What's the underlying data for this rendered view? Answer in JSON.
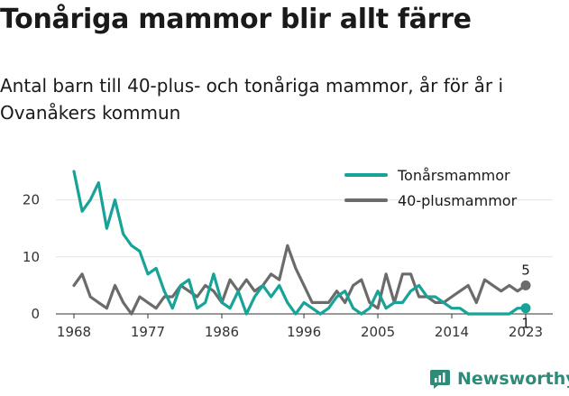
{
  "header": {
    "title": "Tonåriga mammor blir allt färre",
    "subtitle": "Antal barn till 40-plus- och tonåriga mammor, år för år i Ovanåkers kommun"
  },
  "brand": {
    "name": "Newsworthy",
    "icon": "newsworthy-logo-icon",
    "color": "#2e8b79"
  },
  "chart_data": {
    "type": "line",
    "title": "Tonåriga mammor blir allt färre",
    "subtitle": "Antal barn till 40-plus- och tonåriga mammor, år för år i Ovanåkers kommun",
    "xlabel": "",
    "ylabel": "",
    "xlim": [
      1968,
      2023
    ],
    "ylim": [
      0,
      25
    ],
    "x_ticks": [
      1968,
      1977,
      1986,
      1996,
      2005,
      2014,
      2023
    ],
    "y_ticks": [
      0,
      10,
      20
    ],
    "grid": "horizontal",
    "legend_position": "top-right",
    "x": [
      1968,
      1969,
      1970,
      1971,
      1972,
      1973,
      1974,
      1975,
      1976,
      1977,
      1978,
      1979,
      1980,
      1981,
      1982,
      1983,
      1984,
      1985,
      1986,
      1987,
      1988,
      1989,
      1990,
      1991,
      1992,
      1993,
      1994,
      1995,
      1996,
      1997,
      1998,
      1999,
      2000,
      2001,
      2002,
      2003,
      2004,
      2005,
      2006,
      2007,
      2008,
      2009,
      2010,
      2011,
      2012,
      2013,
      2014,
      2015,
      2016,
      2017,
      2018,
      2019,
      2020,
      2021,
      2022,
      2023
    ],
    "series": [
      {
        "name": "Tonårsmammor",
        "color": "#17a398",
        "values": [
          25,
          18,
          20,
          23,
          15,
          20,
          14,
          12,
          11,
          7,
          8,
          4,
          1,
          5,
          6,
          1,
          2,
          7,
          2,
          1,
          4,
          0,
          3,
          5,
          3,
          5,
          2,
          0,
          2,
          1,
          0,
          1,
          3,
          4,
          1,
          0,
          1,
          4,
          1,
          2,
          2,
          4,
          5,
          3,
          3,
          2,
          1,
          1,
          0,
          0,
          0,
          0,
          0,
          0,
          1,
          1
        ],
        "end_label": "1"
      },
      {
        "name": "40-plusmammor",
        "color": "#6b6b6b",
        "values": [
          5,
          7,
          3,
          2,
          1,
          5,
          2,
          0,
          3,
          2,
          1,
          3,
          3,
          5,
          4,
          3,
          5,
          4,
          2,
          6,
          4,
          6,
          4,
          5,
          7,
          6,
          12,
          8,
          5,
          2,
          2,
          2,
          4,
          2,
          5,
          6,
          2,
          1,
          7,
          2,
          7,
          7,
          3,
          3,
          2,
          2,
          3,
          4,
          5,
          2,
          6,
          5,
          4,
          5,
          4,
          5
        ],
        "end_label": "5"
      }
    ]
  }
}
